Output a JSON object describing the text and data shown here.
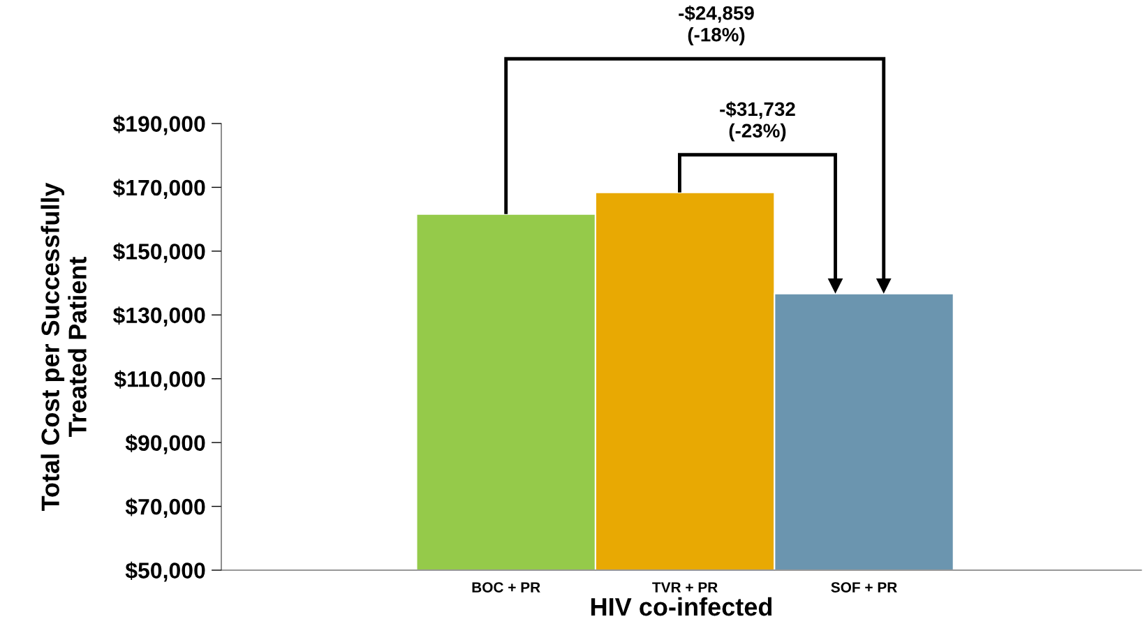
{
  "chart_data": {
    "type": "bar",
    "xlabel": "HIV co-infected",
    "ylabel": "Total Cost per Successfully\nTreated Patient",
    "categories": [
      "BOC + PR",
      "TVR + PR",
      "SOF + PR"
    ],
    "values": [
      161600,
      168400,
      136700
    ],
    "colors": [
      "#95ca4a",
      "#e8a903",
      "#6b95af"
    ],
    "ylim": [
      50000,
      190000
    ],
    "yticks": [
      {
        "value": 50000,
        "label": "$50,000"
      },
      {
        "value": 70000,
        "label": "$70,000"
      },
      {
        "value": 90000,
        "label": "$90,000"
      },
      {
        "value": 110000,
        "label": "$110,000"
      },
      {
        "value": 130000,
        "label": "$130,000"
      },
      {
        "value": 150000,
        "label": "$150,000"
      },
      {
        "value": 170000,
        "label": "$170,000"
      },
      {
        "value": 190000,
        "label": "$190,000"
      }
    ],
    "annotations": [
      "-$24,859\n(-18%)",
      "-$31,732\n(-23%)"
    ],
    "grid": false,
    "legend": false
  }
}
